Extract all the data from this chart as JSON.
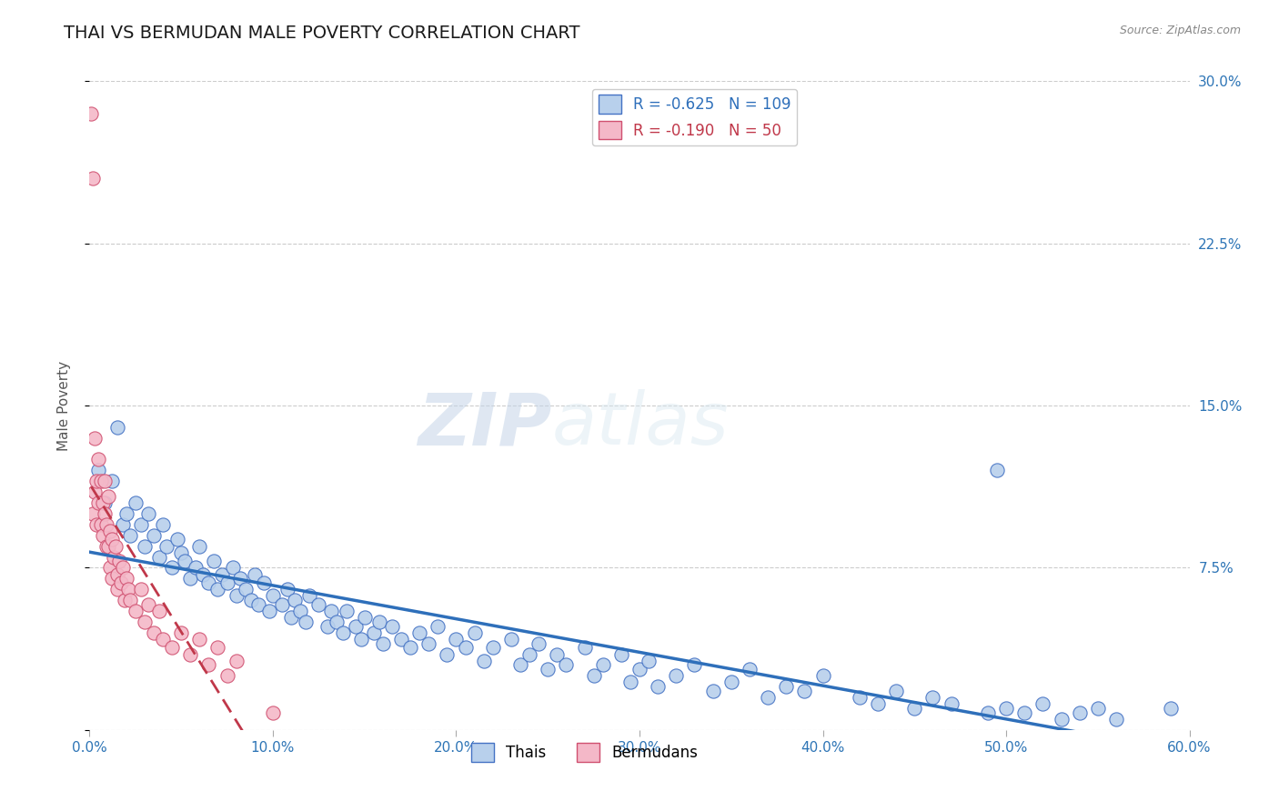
{
  "title": "THAI VS BERMUDAN MALE POVERTY CORRELATION CHART",
  "source_text": "Source: ZipAtlas.com",
  "ylabel": "Male Poverty",
  "xlim": [
    0.0,
    0.6
  ],
  "ylim": [
    0.0,
    0.3
  ],
  "yticks": [
    0.0,
    0.075,
    0.15,
    0.225,
    0.3
  ],
  "ytick_labels": [
    "",
    "7.5%",
    "15.0%",
    "22.5%",
    "30.0%"
  ],
  "xticks": [
    0.0,
    0.1,
    0.2,
    0.3,
    0.4,
    0.5,
    0.6
  ],
  "xtick_labels": [
    "0.0%",
    "10.0%",
    "20.0%",
    "30.0%",
    "40.0%",
    "50.0%",
    "60.0%"
  ],
  "thai_color": "#b8d0ec",
  "thai_edge_color": "#4472c4",
  "bermudan_color": "#f4b8c8",
  "bermudan_edge_color": "#d05070",
  "trend_blue_color": "#2e6fba",
  "trend_pink_color": "#c0384a",
  "thai_R": -0.625,
  "thai_N": 109,
  "bermudan_R": -0.19,
  "bermudan_N": 50,
  "grid_color": "#cccccc",
  "background_color": "#ffffff",
  "title_fontsize": 14,
  "axis_label_fontsize": 11,
  "tick_fontsize": 11,
  "legend_fontsize": 12,
  "watermark_color": "#d0dff0",
  "thai_x": [
    0.005,
    0.008,
    0.012,
    0.015,
    0.018,
    0.02,
    0.022,
    0.025,
    0.028,
    0.03,
    0.032,
    0.035,
    0.038,
    0.04,
    0.042,
    0.045,
    0.048,
    0.05,
    0.052,
    0.055,
    0.058,
    0.06,
    0.062,
    0.065,
    0.068,
    0.07,
    0.072,
    0.075,
    0.078,
    0.08,
    0.082,
    0.085,
    0.088,
    0.09,
    0.092,
    0.095,
    0.098,
    0.1,
    0.105,
    0.108,
    0.11,
    0.112,
    0.115,
    0.118,
    0.12,
    0.125,
    0.13,
    0.132,
    0.135,
    0.138,
    0.14,
    0.145,
    0.148,
    0.15,
    0.155,
    0.158,
    0.16,
    0.165,
    0.17,
    0.175,
    0.18,
    0.185,
    0.19,
    0.195,
    0.2,
    0.205,
    0.21,
    0.215,
    0.22,
    0.23,
    0.235,
    0.24,
    0.245,
    0.25,
    0.255,
    0.26,
    0.27,
    0.275,
    0.28,
    0.29,
    0.295,
    0.3,
    0.305,
    0.31,
    0.32,
    0.33,
    0.34,
    0.35,
    0.36,
    0.37,
    0.38,
    0.39,
    0.4,
    0.42,
    0.43,
    0.44,
    0.45,
    0.46,
    0.47,
    0.49,
    0.495,
    0.5,
    0.51,
    0.52,
    0.53,
    0.54,
    0.55,
    0.56,
    0.59
  ],
  "thai_y": [
    0.12,
    0.105,
    0.115,
    0.14,
    0.095,
    0.1,
    0.09,
    0.105,
    0.095,
    0.085,
    0.1,
    0.09,
    0.08,
    0.095,
    0.085,
    0.075,
    0.088,
    0.082,
    0.078,
    0.07,
    0.075,
    0.085,
    0.072,
    0.068,
    0.078,
    0.065,
    0.072,
    0.068,
    0.075,
    0.062,
    0.07,
    0.065,
    0.06,
    0.072,
    0.058,
    0.068,
    0.055,
    0.062,
    0.058,
    0.065,
    0.052,
    0.06,
    0.055,
    0.05,
    0.062,
    0.058,
    0.048,
    0.055,
    0.05,
    0.045,
    0.055,
    0.048,
    0.042,
    0.052,
    0.045,
    0.05,
    0.04,
    0.048,
    0.042,
    0.038,
    0.045,
    0.04,
    0.048,
    0.035,
    0.042,
    0.038,
    0.045,
    0.032,
    0.038,
    0.042,
    0.03,
    0.035,
    0.04,
    0.028,
    0.035,
    0.03,
    0.038,
    0.025,
    0.03,
    0.035,
    0.022,
    0.028,
    0.032,
    0.02,
    0.025,
    0.03,
    0.018,
    0.022,
    0.028,
    0.015,
    0.02,
    0.018,
    0.025,
    0.015,
    0.012,
    0.018,
    0.01,
    0.015,
    0.012,
    0.008,
    0.12,
    0.01,
    0.008,
    0.012,
    0.005,
    0.008,
    0.01,
    0.005,
    0.01
  ],
  "bermudan_x": [
    0.001,
    0.002,
    0.002,
    0.003,
    0.003,
    0.004,
    0.004,
    0.005,
    0.005,
    0.006,
    0.006,
    0.007,
    0.007,
    0.008,
    0.008,
    0.009,
    0.009,
    0.01,
    0.01,
    0.011,
    0.011,
    0.012,
    0.012,
    0.013,
    0.014,
    0.015,
    0.015,
    0.016,
    0.017,
    0.018,
    0.019,
    0.02,
    0.021,
    0.022,
    0.025,
    0.028,
    0.03,
    0.032,
    0.035,
    0.038,
    0.04,
    0.045,
    0.05,
    0.055,
    0.06,
    0.065,
    0.07,
    0.075,
    0.08,
    0.1
  ],
  "bermudan_y": [
    0.285,
    0.255,
    0.1,
    0.135,
    0.11,
    0.115,
    0.095,
    0.125,
    0.105,
    0.115,
    0.095,
    0.105,
    0.09,
    0.1,
    0.115,
    0.085,
    0.095,
    0.108,
    0.085,
    0.092,
    0.075,
    0.088,
    0.07,
    0.08,
    0.085,
    0.072,
    0.065,
    0.078,
    0.068,
    0.075,
    0.06,
    0.07,
    0.065,
    0.06,
    0.055,
    0.065,
    0.05,
    0.058,
    0.045,
    0.055,
    0.042,
    0.038,
    0.045,
    0.035,
    0.042,
    0.03,
    0.038,
    0.025,
    0.032,
    0.008
  ]
}
